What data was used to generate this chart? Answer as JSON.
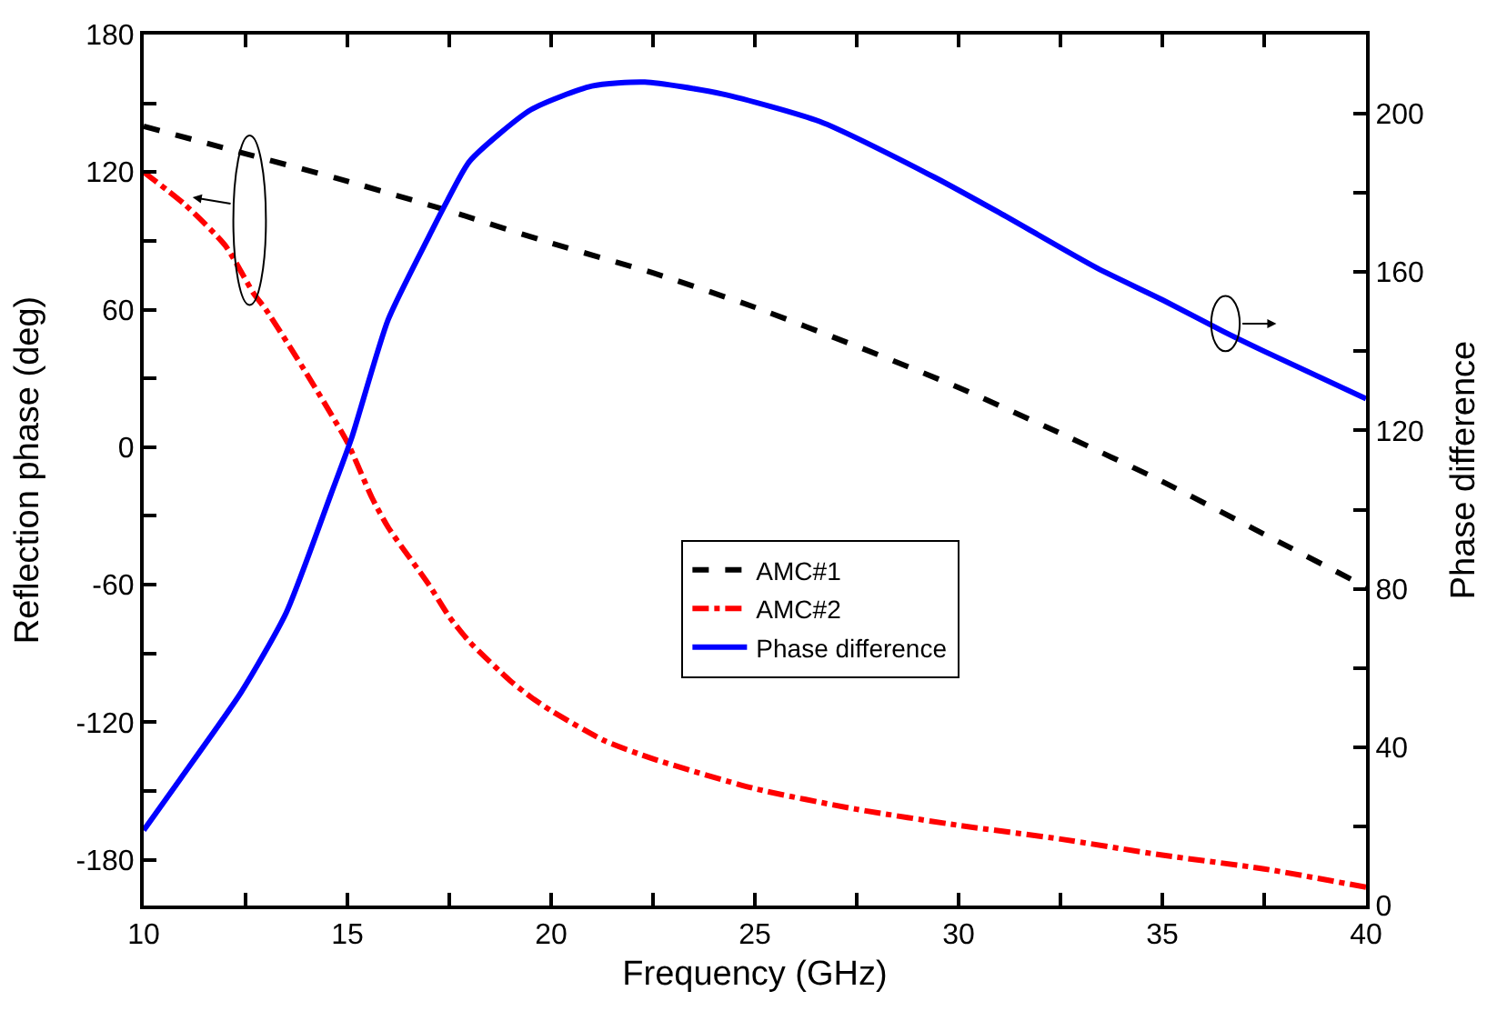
{
  "chart_data": {
    "type": "line",
    "xlabel": "Frequency (GHz)",
    "ylabel": "Reflection phase (deg)",
    "y2label": "Phase difference",
    "xlim": [
      10,
      40
    ],
    "xticks": [
      10,
      {
        "value": 12.5,
        "label": null
      },
      15,
      {
        "value": 17.5,
        "label": null
      },
      20,
      {
        "value": 22.5,
        "label": null
      },
      25,
      {
        "value": 27.5,
        "label": null
      },
      30,
      {
        "value": 32.5,
        "label": null
      },
      35,
      {
        "value": 37.5,
        "label": null
      },
      40
    ],
    "ylim": [
      -200,
      180
    ],
    "yticks": [
      -180,
      {
        "value": -150,
        "label": null
      },
      -120,
      {
        "value": -90,
        "label": null
      },
      -60,
      {
        "value": -30,
        "label": null
      },
      0,
      {
        "value": 30,
        "label": null
      },
      60,
      {
        "value": 90,
        "label": null
      },
      120,
      {
        "value": 150,
        "label": null
      },
      180
    ],
    "y2lim": [
      0,
      220
    ],
    "y2ticks": [
      0,
      {
        "value": 20,
        "label": null
      },
      40,
      {
        "value": 60,
        "label": null
      },
      80,
      {
        "value": 100,
        "label": null
      },
      120,
      {
        "value": 140,
        "label": null
      },
      160,
      {
        "value": 180,
        "label": null
      },
      200
    ],
    "legend": "center",
    "marker": "none",
    "series": [
      {
        "name": "AMC#1",
        "color": "#000000",
        "line_style": "dashed",
        "x": [
          10,
          12.5,
          15,
          17.5,
          20,
          22.5,
          25,
          27.5,
          30,
          32.5,
          35,
          37.5,
          40
        ],
        "values": [
          140,
          128,
          116,
          103,
          89,
          76,
          61,
          44,
          26,
          6,
          -15,
          -38,
          -61
        ]
      },
      {
        "name": "AMC#2",
        "color": "#ff0000",
        "line_style": "dashdot",
        "x": [
          10,
          11,
          12,
          12.7,
          13,
          14,
          15,
          15.6,
          16,
          17,
          17.5,
          18,
          19,
          19.5,
          20,
          21.3,
          22.5,
          25,
          27.5,
          30,
          32.5,
          35,
          37.5,
          40
        ],
        "values": [
          120,
          106,
          88,
          67,
          60,
          32,
          2,
          -22,
          -35,
          -60,
          -74,
          -85,
          -102,
          -109,
          -115,
          -128,
          -136,
          -149,
          -158,
          -165,
          -171,
          -178,
          -184,
          -192
        ]
      },
      {
        "name": "Phase difference",
        "color": "#0000ff",
        "line_style": "solid",
        "axis": "y2",
        "x": [
          10,
          10.9,
          12.4,
          13.5,
          14.6,
          15.1,
          16,
          17,
          17.45,
          18,
          19.5,
          21,
          22.3,
          24.2,
          26.6,
          29.4,
          31,
          33.4,
          35,
          36.5,
          37.5,
          40
        ],
        "values": [
          19,
          32,
          54,
          74,
          104,
          118,
          148,
          169,
          178,
          188,
          201,
          207,
          208,
          205,
          198,
          184,
          175,
          161,
          153,
          145,
          140,
          128
        ]
      }
    ]
  }
}
